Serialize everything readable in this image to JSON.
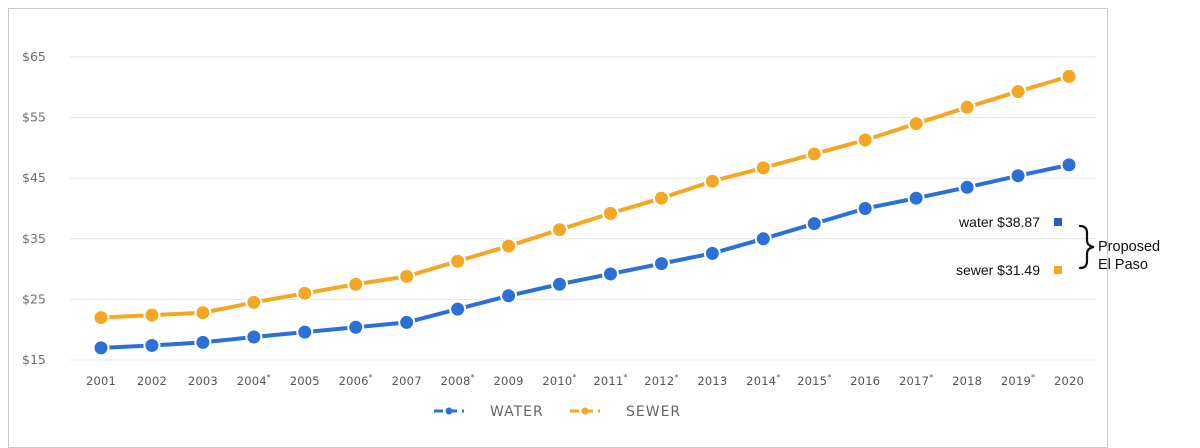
{
  "colors": {
    "water": "#2a70d8",
    "sewer": "#f5a623",
    "grid": "#e6e6e6",
    "annotation_water": "#1f5fbf",
    "annotation_sewer": "#f5a623"
  },
  "chart_data": {
    "type": "line",
    "title": "",
    "xlabel": "",
    "ylabel": "",
    "categories": [
      "2001",
      "2002",
      "2003",
      "2004*",
      "2005",
      "2006*",
      "2007",
      "2008*",
      "2009",
      "2010*",
      "2011*",
      "2012*",
      "2013",
      "2014*",
      "2015*",
      "2016",
      "2017*",
      "2018",
      "2019*",
      "2020"
    ],
    "y_tick_labels": [
      "$15",
      "$25",
      "$35",
      "$45",
      "$55",
      "$65"
    ],
    "y_ticks": [
      15,
      25,
      35,
      45,
      55,
      65
    ],
    "ylim": [
      15,
      65
    ],
    "grid": true,
    "legend_position": "bottom-center",
    "series": [
      {
        "name": "WATER",
        "color": "#2a70d8",
        "values": [
          17.0,
          17.4,
          17.9,
          18.8,
          19.6,
          20.4,
          21.2,
          23.4,
          25.6,
          27.5,
          29.2,
          30.9,
          32.6,
          35.0,
          37.5,
          40.0,
          41.7,
          43.5,
          45.4,
          47.2
        ]
      },
      {
        "name": "SEWER",
        "color": "#f5a623",
        "values": [
          22.0,
          22.4,
          22.8,
          24.5,
          26.0,
          27.5,
          28.8,
          31.3,
          33.8,
          36.5,
          39.2,
          41.7,
          44.5,
          46.7,
          49.0,
          51.3,
          54.0,
          56.7,
          59.3,
          61.8
        ]
      }
    ],
    "annotations": [
      {
        "label": "water $38.87",
        "value": 38.87,
        "color": "#1f5fbf"
      },
      {
        "label": "sewer $31.49",
        "value": 31.49,
        "color": "#f5a623"
      }
    ],
    "side_note_lines": [
      "Proposed",
      "El Paso"
    ]
  }
}
